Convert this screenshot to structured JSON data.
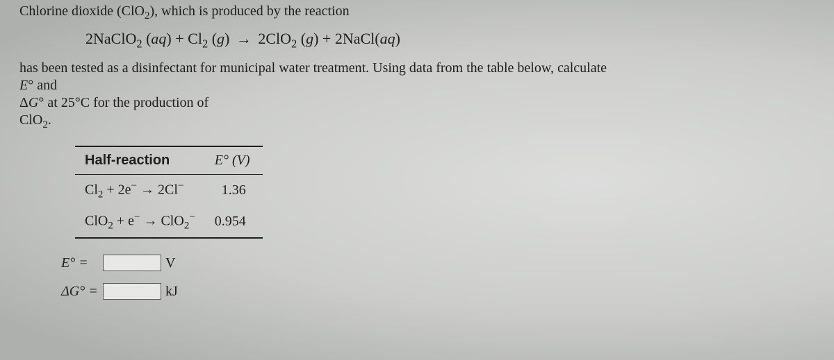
{
  "intro": {
    "l1_pre": "Chlorine dioxide (",
    "l1_formula_html": "ClO<sub>2</sub>",
    "l1_post": "), which is produced by the reaction",
    "eq_html": "2NaClO<sub>2</sub> (<span class='ital'>aq</span>) + Cl<sub>2</sub> (<span class='ital'>g</span>) <span class='arrow'>→</span> 2ClO<sub>2</sub> (<span class='ital'>g</span>) + 2NaCl(<span class='ital'>aq</span>)",
    "l3": "has been tested as a disinfectant for municipal water treatment. Using data from the table below, calculate",
    "l4_html": "<span class='ital'>E</span>° and",
    "l5_html": "Δ<span class='ital'>G</span>° at 25°C for the production of",
    "l6_html": "ClO<sub>2</sub>."
  },
  "table": {
    "head1": "Half-reaction",
    "head2_html": "<span class='ital'>E</span>° (V)",
    "rows": [
      {
        "rxn_html": "Cl<sub>2</sub> + 2e<sup>−</sup> → 2Cl<sup>−</sup>",
        "val": "1.36"
      },
      {
        "rxn_html": "ClO<sub>2</sub> + e<sup>−</sup> → ClO<sub>2</sub><sup>−</sup>",
        "val": "0.954"
      }
    ]
  },
  "answers": {
    "e_label_html": "<span class='ital'>E</span>° =",
    "e_unit": "V",
    "g_label_html": "Δ<span class='ital'>G</span>° =",
    "g_unit": "kJ"
  }
}
